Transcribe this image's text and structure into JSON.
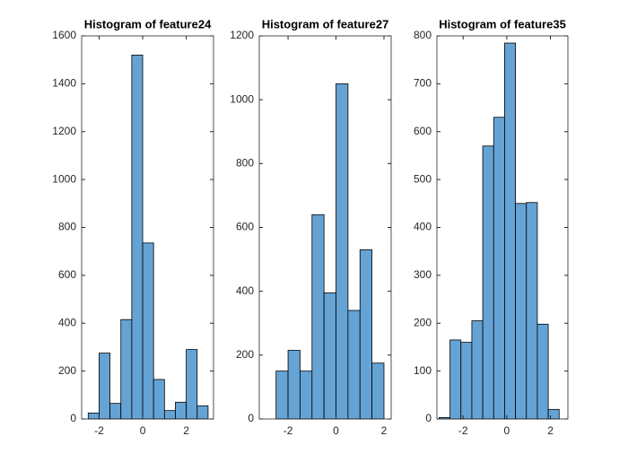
{
  "chart_data": [
    {
      "type": "histogram",
      "title": "Histogram of feature24",
      "bins": [
        -2.5,
        -2.0,
        -1.5,
        -1.0,
        -0.5,
        0.0,
        0.5,
        1.0,
        1.5,
        2.0,
        2.5,
        3.0
      ],
      "values": [
        25,
        275,
        65,
        415,
        1520,
        735,
        165,
        35,
        70,
        290,
        55
      ],
      "color": "#65a3d5",
      "xlim": [
        -2.8,
        3.25
      ],
      "xticks": [
        -2,
        0,
        2
      ],
      "ylim": [
        0,
        1600
      ],
      "yticks": [
        0,
        200,
        400,
        600,
        800,
        1000,
        1200,
        1400,
        1600
      ]
    },
    {
      "type": "histogram",
      "title": "Histogram of feature27",
      "bins": [
        -2.5,
        -2.0,
        -1.5,
        -1.0,
        -0.5,
        0.0,
        0.5,
        1.0,
        1.5,
        2.0
      ],
      "values": [
        150,
        215,
        150,
        640,
        395,
        1050,
        340,
        530,
        175
      ],
      "color": "#65a3d5",
      "xlim": [
        -3.2,
        2.3
      ],
      "xticks": [
        -2,
        0,
        2
      ],
      "ylim": [
        0,
        1200
      ],
      "yticks": [
        0,
        200,
        400,
        600,
        800,
        1000,
        1200
      ]
    },
    {
      "type": "histogram",
      "title": "Histogram of feature35",
      "bins": [
        -3.1,
        -2.6,
        -2.1,
        -1.6,
        -1.1,
        -0.6,
        -0.1,
        0.4,
        0.9,
        1.4,
        1.9,
        2.4
      ],
      "values": [
        3,
        165,
        160,
        205,
        570,
        630,
        785,
        450,
        452,
        198,
        20
      ],
      "color": "#65a3d5",
      "xlim": [
        -3.2,
        2.8
      ],
      "xticks": [
        -2,
        0,
        2
      ],
      "ylim": [
        0,
        800
      ],
      "yticks": [
        0,
        100,
        200,
        300,
        400,
        500,
        600,
        700,
        800
      ]
    }
  ]
}
